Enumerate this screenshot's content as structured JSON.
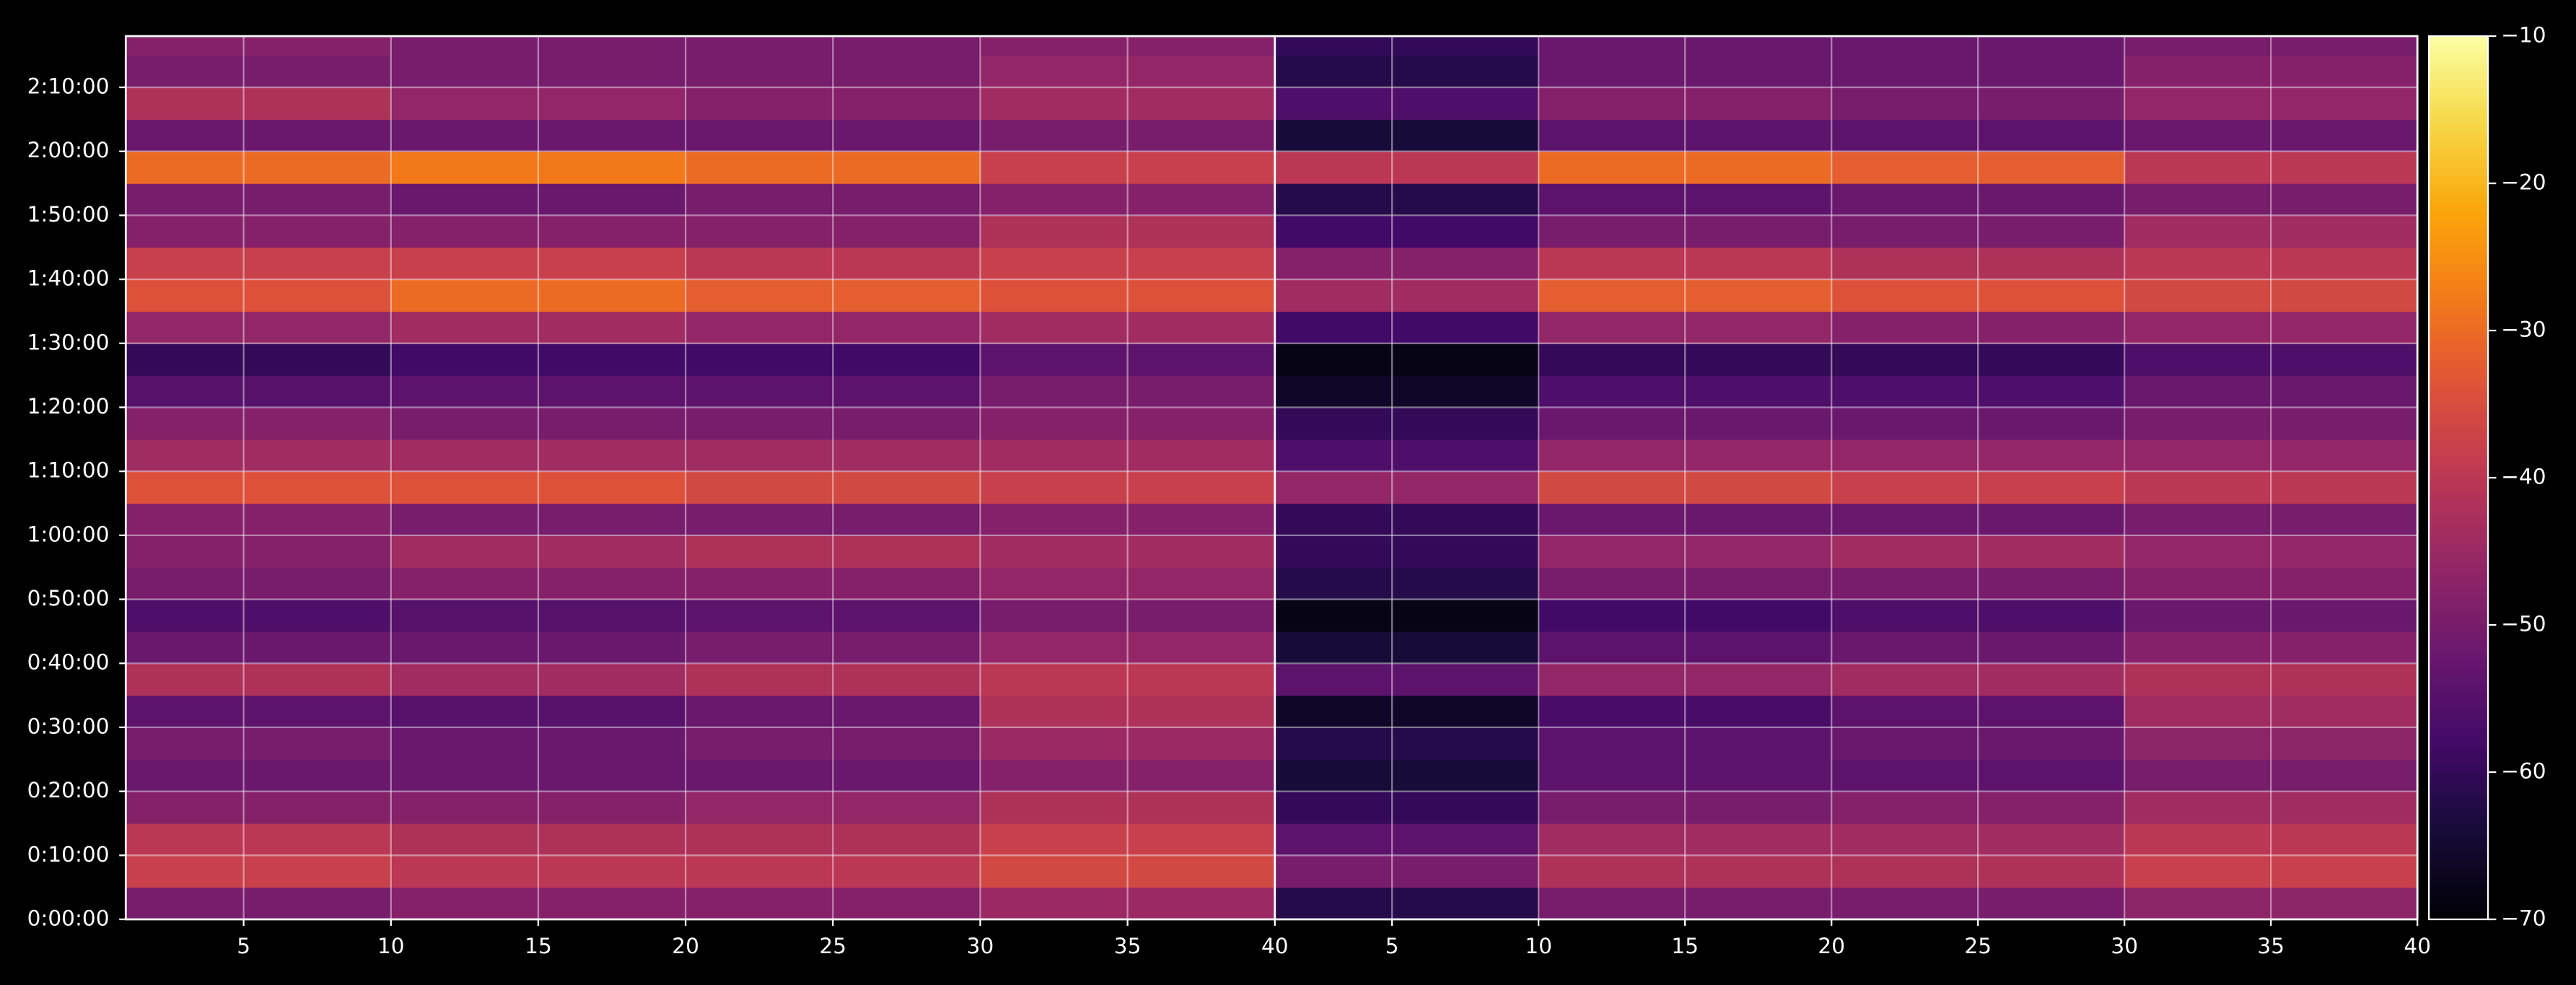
{
  "chart_data": {
    "type": "heatmap",
    "cmap": "inferno",
    "ylim": [
      0,
      8280
    ],
    "yticks": [
      {
        "value": 0,
        "label": "0:00:00"
      },
      {
        "value": 600,
        "label": "0:10:00"
      },
      {
        "value": 1200,
        "label": "0:20:00"
      },
      {
        "value": 1800,
        "label": "0:30:00"
      },
      {
        "value": 2400,
        "label": "0:40:00"
      },
      {
        "value": 3000,
        "label": "0:50:00"
      },
      {
        "value": 3600,
        "label": "1:00:00"
      },
      {
        "value": 4200,
        "label": "1:10:00"
      },
      {
        "value": 4800,
        "label": "1:20:00"
      },
      {
        "value": 5400,
        "label": "1:30:00"
      },
      {
        "value": 6000,
        "label": "1:40:00"
      },
      {
        "value": 6600,
        "label": "1:50:00"
      },
      {
        "value": 7200,
        "label": "2:00:00"
      },
      {
        "value": 7800,
        "label": "2:10:00"
      }
    ],
    "ybins": [
      0,
      300,
      600,
      900,
      1200,
      1500,
      1800,
      2100,
      2400,
      2700,
      3000,
      3300,
      3600,
      3900,
      4200,
      4500,
      4800,
      5100,
      5400,
      5700,
      6000,
      6300,
      6600,
      6900,
      7200,
      7500,
      7800,
      8100,
      8280
    ],
    "colorbar": {
      "clim": [
        -70,
        -10
      ],
      "ticks": [
        {
          "value": -70,
          "label": "−70"
        },
        {
          "value": -60,
          "label": "−60"
        },
        {
          "value": -50,
          "label": "−50"
        },
        {
          "value": -40,
          "label": "−40"
        },
        {
          "value": -30,
          "label": "−30"
        },
        {
          "value": -20,
          "label": "−20"
        },
        {
          "value": -10,
          "label": "−10"
        }
      ]
    },
    "panels": [
      {
        "xlim": [
          1,
          40
        ],
        "xticks": [
          5,
          10,
          15,
          20,
          25,
          30,
          35,
          40
        ],
        "xbins": [
          1,
          10,
          20,
          30,
          40
        ],
        "values": [
          [
            -50,
            -48,
            -48,
            -45
          ],
          [
            -38,
            -40,
            -40,
            -36
          ],
          [
            -40,
            -42,
            -42,
            -38
          ],
          [
            -48,
            -48,
            -46,
            -42
          ],
          [
            -52,
            -52,
            -52,
            -48
          ],
          [
            -50,
            -52,
            -50,
            -45
          ],
          [
            -54,
            -55,
            -52,
            -42
          ],
          [
            -42,
            -44,
            -42,
            -40
          ],
          [
            -52,
            -52,
            -50,
            -46
          ],
          [
            -56,
            -55,
            -54,
            -50
          ],
          [
            -50,
            -48,
            -48,
            -46
          ],
          [
            -48,
            -44,
            -42,
            -44
          ],
          [
            -48,
            -50,
            -50,
            -48
          ],
          [
            -34,
            -34,
            -36,
            -38
          ],
          [
            -44,
            -44,
            -44,
            -44
          ],
          [
            -48,
            -50,
            -50,
            -48
          ],
          [
            -55,
            -54,
            -54,
            -50
          ],
          [
            -60,
            -58,
            -58,
            -54
          ],
          [
            -46,
            -44,
            -46,
            -44
          ],
          [
            -34,
            -30,
            -32,
            -34
          ],
          [
            -38,
            -38,
            -40,
            -38
          ],
          [
            -48,
            -48,
            -48,
            -42
          ],
          [
            -50,
            -52,
            -50,
            -48
          ],
          [
            -30,
            -28,
            -30,
            -38
          ],
          [
            -52,
            -52,
            -52,
            -50
          ],
          [
            -42,
            -46,
            -48,
            -44
          ],
          [
            -50,
            -50,
            -50,
            -46
          ],
          [
            -48,
            -50,
            -50,
            -48
          ]
        ]
      },
      {
        "xlim": [
          1,
          40
        ],
        "xticks": [
          5,
          10,
          15,
          20,
          25,
          30,
          35,
          40
        ],
        "xbins": [
          1,
          10,
          20,
          30,
          40
        ],
        "values": [
          [
            -62,
            -50,
            -50,
            -47
          ],
          [
            -50,
            -42,
            -42,
            -38
          ],
          [
            -54,
            -44,
            -44,
            -40
          ],
          [
            -60,
            -50,
            -48,
            -44
          ],
          [
            -64,
            -54,
            -54,
            -50
          ],
          [
            -62,
            -54,
            -52,
            -47
          ],
          [
            -66,
            -57,
            -54,
            -44
          ],
          [
            -54,
            -46,
            -44,
            -42
          ],
          [
            -64,
            -54,
            -52,
            -48
          ],
          [
            -68,
            -58,
            -56,
            -52
          ],
          [
            -62,
            -50,
            -50,
            -48
          ],
          [
            -60,
            -46,
            -44,
            -46
          ],
          [
            -60,
            -52,
            -52,
            -50
          ],
          [
            -46,
            -36,
            -38,
            -40
          ],
          [
            -56,
            -46,
            -46,
            -46
          ],
          [
            -60,
            -52,
            -52,
            -50
          ],
          [
            -66,
            -56,
            -56,
            -52
          ],
          [
            -68,
            -60,
            -60,
            -56
          ],
          [
            -58,
            -46,
            -48,
            -46
          ],
          [
            -44,
            -32,
            -34,
            -36
          ],
          [
            -48,
            -40,
            -42,
            -40
          ],
          [
            -58,
            -50,
            -50,
            -44
          ],
          [
            -62,
            -54,
            -52,
            -50
          ],
          [
            -40,
            -30,
            -32,
            -40
          ],
          [
            -64,
            -54,
            -54,
            -52
          ],
          [
            -56,
            -48,
            -50,
            -46
          ],
          [
            -62,
            -52,
            -52,
            -48
          ],
          [
            -60,
            -52,
            -52,
            -50
          ]
        ]
      }
    ]
  }
}
